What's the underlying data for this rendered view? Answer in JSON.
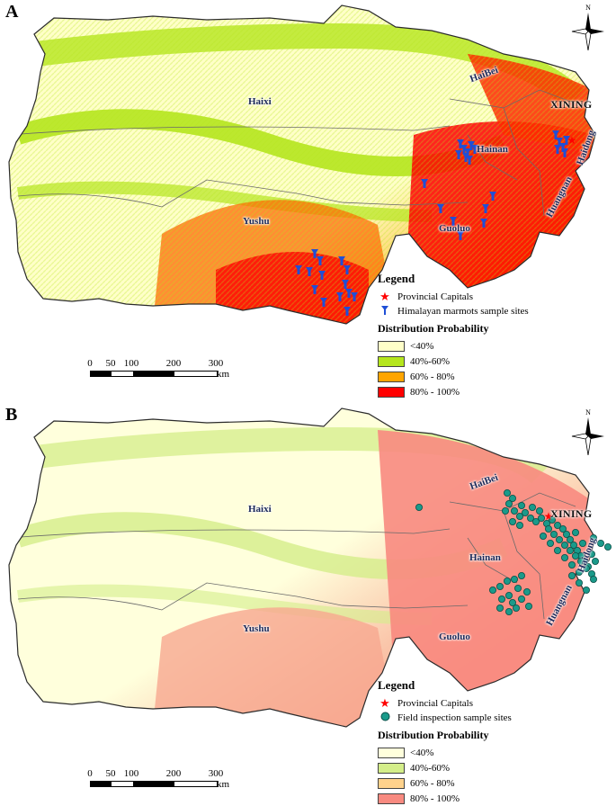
{
  "panels": [
    {
      "letter": "A",
      "legend": {
        "title": "Legend",
        "capital_label": "Provincial Capitals",
        "sample_label": "Himalayan marmots sample sites",
        "dist_title": "Distribution Probability",
        "classes": [
          "<40%",
          "40%-60%",
          "60% - 80%",
          "80% - 100%"
        ],
        "colors": [
          "#ffffc8",
          "#b5e61d",
          "#ffa500",
          "#ff0000"
        ]
      },
      "sample_color": "#1f4fd6",
      "sample_symbol": "marmot-pin-icon"
    },
    {
      "letter": "B",
      "legend": {
        "title": "Legend",
        "capital_label": "Provincial Capitals",
        "sample_label": "Field inspection sample sites",
        "dist_title": "Distribution Probability",
        "classes": [
          "<40%",
          "40%-60%",
          "60% - 80%",
          "80% - 100%"
        ],
        "colors": [
          "#ffffdc",
          "#d4ee8a",
          "#ffd28c",
          "#f88a80"
        ]
      },
      "sample_color": "#1a9a8a",
      "sample_symbol": "teal-circle-icon"
    }
  ],
  "places": {
    "haixi": "Haixi",
    "haibei": "HaiBei",
    "xining": "XINING",
    "haidong": "Haidong",
    "hainan": "Hainan",
    "huangnan": "Huangnan",
    "guoluo": "Guoluo",
    "yushu": "Yushu"
  },
  "scale": {
    "ticks": [
      "0",
      "50",
      "100",
      "200",
      "300"
    ],
    "unit": "km"
  },
  "north_label": "N",
  "capital_color": "#ff0000",
  "capital_symbol": "red-star-icon",
  "north_symbol": "compass-rose-icon"
}
